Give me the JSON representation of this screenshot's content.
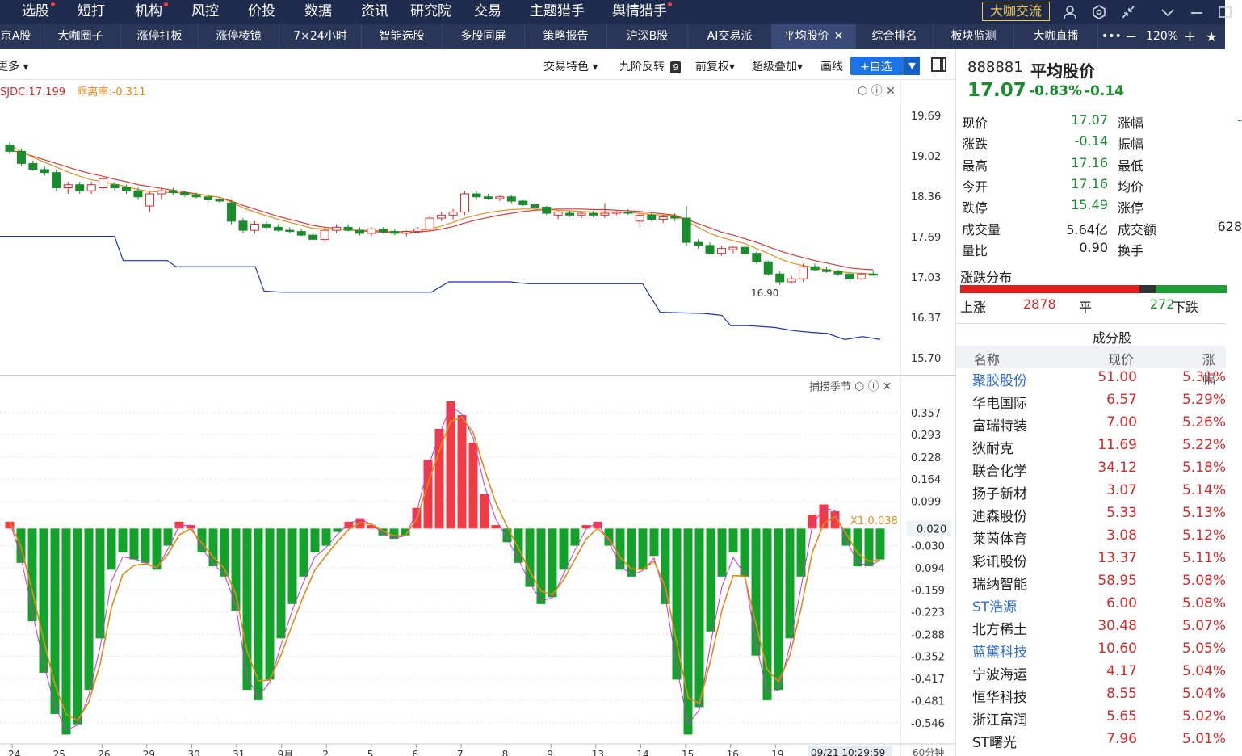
{
  "topnav": {
    "items": [
      "选股",
      "短打",
      "机构",
      "风控",
      "价投",
      "数据",
      "资讯",
      "研究院",
      "交易",
      "主题猎手",
      "舆情猎手"
    ],
    "highlight_button": "大咖交流"
  },
  "tabs": {
    "items": [
      "京A股",
      "大咖圈子",
      "涨停打板",
      "涨停棱镜",
      "7×24小时",
      "智能选股",
      "多股同屏",
      "策略报告",
      "沪深B股",
      "AI交易派",
      "平均股价",
      "综合排名",
      "板块监测",
      "大咖直播"
    ],
    "active_index": 10,
    "zoom": "120%"
  },
  "toolbar": {
    "more": "更多",
    "trade_feature": "交易特色",
    "nine_turn": "九阶反转",
    "nine_badge": "9",
    "fuquan": "前复权▾",
    "overlay": "超级叠加▾",
    "draw": "画线",
    "add_watch": "+自选"
  },
  "top_chart": {
    "legend_a": "SJDC:17.199",
    "legend_b": "乖离率:-0.311",
    "y_ticks": [
      "19.69",
      "19.02",
      "18.36",
      "17.69",
      "17.03",
      "16.37",
      "15.70"
    ],
    "low_label": "16.90"
  },
  "bottom_chart": {
    "title": "捕捞季节",
    "marker_label": "X1:0.038",
    "current_value": "0.020",
    "y_ticks": [
      "0.357",
      "0.293",
      "0.228",
      "0.164",
      "0.099",
      "-0.030",
      "-0.094",
      "-0.159",
      "-0.223",
      "-0.288",
      "-0.352",
      "-0.417",
      "-0.481",
      "-0.546"
    ],
    "x_ticks": [
      "24",
      "25",
      "26",
      "29",
      "30",
      "31",
      "9月",
      "2",
      "5",
      "6",
      "7",
      "8",
      "9",
      "13",
      "14",
      "15",
      "16",
      "19"
    ],
    "timestamp": "09/21 10:29:59",
    "period": "60分钟"
  },
  "quote": {
    "code": "888881",
    "name": "平均股价",
    "price": "17.07",
    "pct": "-0.83%",
    "chg": "-0.14",
    "rows": [
      {
        "k1": "现价",
        "v1": "17.07",
        "c1": "g",
        "k2": "涨幅",
        "v2": "-",
        "c2": "g"
      },
      {
        "k1": "涨跌",
        "v1": "-0.14",
        "c1": "g",
        "k2": "振幅",
        "v2": "",
        "c2": "k"
      },
      {
        "k1": "最高",
        "v1": "17.16",
        "c1": "g",
        "k2": "最低",
        "v2": "",
        "c2": "k"
      },
      {
        "k1": "今开",
        "v1": "17.16",
        "c1": "g",
        "k2": "均价",
        "v2": "",
        "c2": "k"
      },
      {
        "k1": "跌停",
        "v1": "15.49",
        "c1": "g",
        "k2": "涨停",
        "v2": "",
        "c2": "k"
      },
      {
        "k1": "成交量",
        "v1": "5.64亿",
        "c1": "k",
        "k2": "成交额",
        "v2": "628",
        "c2": "k"
      },
      {
        "k1": "量比",
        "v1": "0.90",
        "c1": "k",
        "k2": "换手",
        "v2": "",
        "c2": "k"
      }
    ],
    "dist_title": "涨跌分布",
    "up_label": "上涨",
    "up_count": "2878",
    "flat_label": "平",
    "down_count": "272",
    "down_label": "下跌",
    "dist_colors": {
      "up": "#e01f1f",
      "flat": "#333333",
      "down": "#1f9e35"
    }
  },
  "constituents": {
    "title": "成分股",
    "headers": [
      "名称",
      "现价",
      "涨幅"
    ],
    "rows": [
      {
        "name": "聚胶股份",
        "price": "51.00",
        "pct": "5.31%",
        "blue": true
      },
      {
        "name": "华电国际",
        "price": "6.57",
        "pct": "5.29%",
        "blue": false
      },
      {
        "name": "富瑞特装",
        "price": "7.00",
        "pct": "5.26%",
        "blue": false
      },
      {
        "name": "狄耐克",
        "price": "11.69",
        "pct": "5.22%",
        "blue": false
      },
      {
        "name": "联合化学",
        "price": "34.12",
        "pct": "5.18%",
        "blue": false
      },
      {
        "name": "扬子新材",
        "price": "3.07",
        "pct": "5.14%",
        "blue": false
      },
      {
        "name": "迪森股份",
        "price": "5.33",
        "pct": "5.13%",
        "blue": false
      },
      {
        "name": "莱茵体育",
        "price": "3.08",
        "pct": "5.12%",
        "blue": false
      },
      {
        "name": "彩讯股份",
        "price": "13.37",
        "pct": "5.11%",
        "blue": false
      },
      {
        "name": "瑞纳智能",
        "price": "58.95",
        "pct": "5.08%",
        "blue": false
      },
      {
        "name": "ST浩源",
        "price": "6.00",
        "pct": "5.08%",
        "blue": true
      },
      {
        "name": "北方稀土",
        "price": "30.48",
        "pct": "5.07%",
        "blue": false
      },
      {
        "name": "蓝黛科技",
        "price": "10.60",
        "pct": "5.05%",
        "blue": true
      },
      {
        "name": "宁波海运",
        "price": "4.17",
        "pct": "5.04%",
        "blue": false
      },
      {
        "name": "恒华科技",
        "price": "8.55",
        "pct": "5.04%",
        "blue": false
      },
      {
        "name": "浙江富润",
        "price": "5.65",
        "pct": "5.02%",
        "blue": false
      },
      {
        "name": "ST曙光",
        "price": "7.96",
        "pct": "5.01%",
        "blue": false
      }
    ]
  },
  "series": {
    "candles": [
      [
        19.2,
        19.25,
        19.05,
        19.1
      ],
      [
        19.1,
        19.15,
        18.85,
        18.9
      ],
      [
        18.9,
        18.95,
        18.78,
        18.8
      ],
      [
        18.8,
        18.85,
        18.7,
        18.75
      ],
      [
        18.75,
        18.8,
        18.45,
        18.5
      ],
      [
        18.5,
        18.6,
        18.4,
        18.55
      ],
      [
        18.55,
        18.6,
        18.4,
        18.45
      ],
      [
        18.45,
        18.6,
        18.4,
        18.55
      ],
      [
        18.5,
        18.7,
        18.45,
        18.65
      ],
      [
        18.55,
        18.6,
        18.45,
        18.5
      ],
      [
        18.5,
        18.55,
        18.4,
        18.45
      ],
      [
        18.45,
        18.5,
        18.3,
        18.35
      ],
      [
        18.2,
        18.45,
        18.1,
        18.4
      ],
      [
        18.4,
        18.5,
        18.3,
        18.45
      ],
      [
        18.45,
        18.5,
        18.38,
        18.42
      ],
      [
        18.42,
        18.45,
        18.35,
        18.38
      ],
      [
        18.38,
        18.42,
        18.32,
        18.35
      ],
      [
        18.35,
        18.4,
        18.25,
        18.3
      ],
      [
        18.3,
        18.35,
        18.25,
        18.28
      ],
      [
        18.25,
        18.3,
        17.9,
        17.95
      ],
      [
        17.95,
        18.0,
        17.75,
        17.8
      ],
      [
        17.8,
        17.95,
        17.75,
        17.9
      ],
      [
        17.9,
        17.95,
        17.8,
        17.85
      ],
      [
        17.85,
        17.9,
        17.78,
        17.8
      ],
      [
        17.8,
        17.85,
        17.75,
        17.78
      ],
      [
        17.78,
        17.82,
        17.7,
        17.72
      ],
      [
        17.72,
        17.75,
        17.62,
        17.65
      ],
      [
        17.65,
        17.85,
        17.6,
        17.8
      ],
      [
        17.8,
        17.9,
        17.75,
        17.85
      ],
      [
        17.85,
        17.9,
        17.78,
        17.8
      ],
      [
        17.8,
        17.85,
        17.72,
        17.75
      ],
      [
        17.75,
        17.85,
        17.7,
        17.82
      ],
      [
        17.82,
        17.85,
        17.75,
        17.78
      ],
      [
        17.78,
        17.82,
        17.72,
        17.75
      ],
      [
        17.75,
        17.8,
        17.7,
        17.78
      ],
      [
        17.78,
        17.85,
        17.75,
        17.82
      ],
      [
        17.82,
        18.05,
        17.8,
        18.0
      ],
      [
        18.0,
        18.1,
        17.95,
        18.05
      ],
      [
        18.05,
        18.15,
        17.98,
        18.1
      ],
      [
        18.1,
        18.45,
        18.05,
        18.4
      ],
      [
        18.4,
        18.45,
        18.3,
        18.35
      ],
      [
        18.35,
        18.4,
        18.3,
        18.32
      ],
      [
        18.32,
        18.38,
        18.28,
        18.35
      ],
      [
        18.35,
        18.38,
        18.25,
        18.28
      ],
      [
        18.28,
        18.3,
        18.2,
        18.22
      ],
      [
        18.22,
        18.25,
        18.15,
        18.18
      ],
      [
        18.18,
        18.2,
        18.05,
        18.08
      ],
      [
        18.05,
        18.12,
        17.98,
        18.1
      ],
      [
        18.08,
        18.12,
        18.02,
        18.05
      ],
      [
        18.05,
        18.1,
        18.0,
        18.08
      ],
      [
        18.08,
        18.12,
        18.02,
        18.05
      ],
      [
        18.05,
        18.25,
        18.0,
        18.08
      ],
      [
        18.08,
        18.12,
        18.05,
        18.1
      ],
      [
        18.1,
        18.15,
        18.05,
        18.08
      ],
      [
        17.95,
        18.1,
        17.85,
        18.05
      ],
      [
        18.05,
        18.1,
        17.95,
        17.98
      ],
      [
        17.98,
        18.05,
        17.92,
        18.02
      ],
      [
        18.02,
        18.08,
        17.95,
        18.0
      ],
      [
        18.0,
        18.2,
        17.55,
        17.6
      ],
      [
        17.6,
        17.65,
        17.5,
        17.55
      ],
      [
        17.55,
        17.6,
        17.4,
        17.42
      ],
      [
        17.42,
        17.55,
        17.38,
        17.5
      ],
      [
        17.48,
        17.55,
        17.42,
        17.52
      ],
      [
        17.52,
        17.55,
        17.4,
        17.42
      ],
      [
        17.42,
        17.45,
        17.25,
        17.28
      ],
      [
        17.28,
        17.3,
        17.05,
        17.08
      ],
      [
        17.08,
        17.12,
        16.9,
        16.95
      ],
      [
        16.95,
        17.05,
        16.92,
        17.0
      ],
      [
        17.0,
        17.25,
        16.95,
        17.2
      ],
      [
        17.2,
        17.25,
        17.12,
        17.15
      ],
      [
        17.15,
        17.2,
        17.1,
        17.12
      ],
      [
        17.12,
        17.15,
        17.05,
        17.08
      ],
      [
        17.08,
        17.12,
        16.95,
        17.0
      ],
      [
        17.0,
        17.1,
        16.98,
        17.08
      ],
      [
        17.08,
        17.12,
        17.05,
        17.07
      ]
    ],
    "ma_a": [
      19.12,
      19.08,
      19.02,
      18.96,
      18.9,
      18.84,
      18.78,
      18.73,
      18.69,
      18.64,
      18.6,
      18.55,
      18.52,
      18.49,
      18.46,
      18.43,
      18.4,
      18.37,
      18.34,
      18.28,
      18.21,
      18.15,
      18.09,
      18.03,
      17.98,
      17.93,
      17.88,
      17.85,
      17.83,
      17.81,
      17.79,
      17.78,
      17.77,
      17.76,
      17.76,
      17.77,
      17.79,
      17.82,
      17.86,
      17.92,
      17.97,
      18.01,
      18.05,
      18.08,
      18.11,
      18.13,
      18.14,
      18.15,
      18.15,
      18.15,
      18.14,
      18.14,
      18.13,
      18.12,
      18.11,
      18.09,
      18.07,
      18.05,
      17.98,
      17.91,
      17.84,
      17.77,
      17.72,
      17.66,
      17.6,
      17.53,
      17.46,
      17.4,
      17.35,
      17.3,
      17.26,
      17.22,
      17.18,
      17.16,
      17.15
    ],
    "ma_b": [
      19.2,
      19.1,
      19.0,
      18.92,
      18.84,
      18.76,
      18.69,
      18.63,
      18.6,
      18.56,
      18.52,
      18.47,
      18.44,
      18.43,
      18.42,
      18.41,
      18.39,
      18.37,
      18.34,
      18.26,
      18.17,
      18.1,
      18.04,
      17.98,
      17.93,
      17.88,
      17.83,
      17.82,
      17.82,
      17.81,
      17.8,
      17.8,
      17.79,
      17.78,
      17.78,
      17.79,
      17.82,
      17.87,
      17.93,
      18.0,
      18.05,
      18.09,
      18.12,
      18.14,
      18.15,
      18.15,
      18.14,
      18.13,
      18.12,
      18.11,
      18.1,
      18.1,
      18.1,
      18.09,
      18.08,
      18.06,
      18.05,
      18.04,
      17.95,
      17.85,
      17.75,
      17.68,
      17.63,
      17.58,
      17.5,
      17.42,
      17.33,
      17.26,
      17.22,
      17.18,
      17.15,
      17.12,
      17.1,
      17.09,
      17.08
    ],
    "support": [
      [
        0,
        17.7
      ],
      [
        13,
        17.7
      ],
      [
        14,
        17.3
      ],
      [
        19,
        17.3
      ],
      [
        20,
        17.2
      ],
      [
        29,
        17.2
      ],
      [
        30,
        16.8
      ],
      [
        32,
        16.78
      ],
      [
        49,
        16.78
      ],
      [
        51,
        16.95
      ],
      [
        58,
        16.95
      ],
      [
        60,
        16.92
      ],
      [
        73,
        16.92
      ],
      [
        75,
        16.45
      ],
      [
        80,
        16.43
      ],
      [
        82,
        16.4
      ],
      [
        83,
        16.23
      ],
      [
        85,
        16.23
      ],
      [
        88,
        16.2
      ],
      [
        90,
        16.15
      ],
      [
        92,
        16.12
      ],
      [
        94,
        16.1
      ],
      [
        96,
        16.0
      ],
      [
        98,
        16.05
      ],
      [
        100,
        16.0
      ]
    ],
    "osc": [
      0.04,
      -0.08,
      -0.25,
      -0.4,
      -0.52,
      -0.58,
      -0.55,
      -0.45,
      -0.3,
      -0.1,
      -0.05,
      -0.07,
      -0.08,
      -0.1,
      -0.03,
      0.04,
      0.03,
      -0.05,
      -0.09,
      -0.12,
      -0.22,
      -0.45,
      -0.48,
      -0.42,
      -0.3,
      -0.2,
      -0.12,
      -0.05,
      -0.03,
      0.01,
      0.04,
      0.05,
      0.03,
      0.0,
      -0.01,
      0.0,
      0.08,
      0.22,
      0.31,
      0.39,
      0.35,
      0.27,
      0.12,
      0.03,
      -0.02,
      -0.08,
      -0.15,
      -0.2,
      -0.18,
      -0.1,
      -0.03,
      0.03,
      0.04,
      -0.03,
      -0.1,
      -0.12,
      -0.1,
      -0.06,
      -0.2,
      -0.42,
      -0.58,
      -0.5,
      -0.28,
      -0.12,
      -0.05,
      -0.12,
      -0.35,
      -0.48,
      -0.45,
      -0.3,
      -0.12,
      0.06,
      0.09,
      0.07,
      -0.03,
      -0.09,
      -0.09,
      -0.07
    ]
  }
}
